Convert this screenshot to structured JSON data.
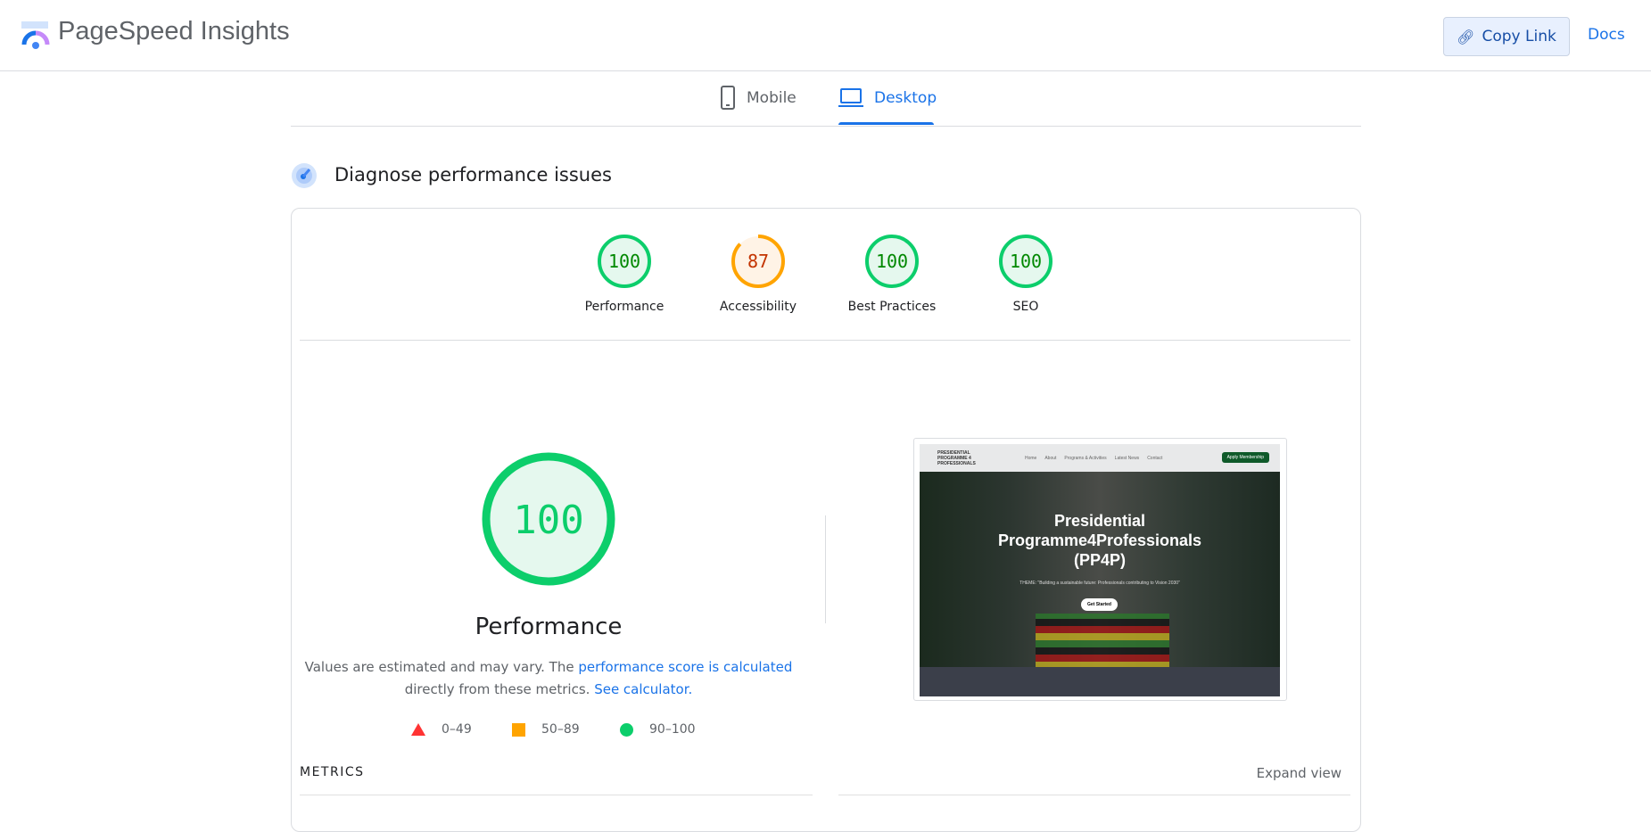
{
  "header": {
    "title": "PageSpeed Insights",
    "copy_link": "Copy Link",
    "docs": "Docs"
  },
  "tabs": [
    {
      "label": "Mobile",
      "active": false
    },
    {
      "label": "Desktop",
      "active": true
    }
  ],
  "section": {
    "title": "Diagnose performance issues"
  },
  "scores": [
    {
      "label": "Performance",
      "value": "100",
      "status": "pass"
    },
    {
      "label": "Accessibility",
      "value": "87",
      "status": "average"
    },
    {
      "label": "Best Practices",
      "value": "100",
      "status": "pass"
    },
    {
      "label": "SEO",
      "value": "100",
      "status": "pass"
    }
  ],
  "performance": {
    "score": "100",
    "title": "Performance",
    "desc_1": "Values are estimated and may vary. The ",
    "link_1": "performance score is calculated",
    "desc_2": " directly from these metrics. ",
    "link_2": "See calculator."
  },
  "legend": [
    {
      "range": "0–49",
      "shape": "triangle",
      "color": "#ff3333"
    },
    {
      "range": "50–89",
      "shape": "square",
      "color": "#ffa400"
    },
    {
      "range": "90–100",
      "shape": "circle",
      "color": "#0cce6b"
    }
  ],
  "metrics": {
    "label": "METRICS",
    "expand": "Expand view"
  },
  "screenshot": {
    "nav": [
      "Home",
      "About",
      "Programs & Activities",
      "Latest News",
      "Contact"
    ],
    "apply": "Apply Membership",
    "logo_text": "PRESIDENTIAL PROGRAMME 4 PROFESSIONALS",
    "heading_1": "Presidential",
    "heading_2": "Programme4Professionals",
    "heading_3": "(PP4P)",
    "theme": "THEME: \"Building a sustainable future: Professionals contributing to Vision 2030\"",
    "button": "Get Started"
  },
  "colors": {
    "pass": "#0cce6b",
    "pass_text": "#008800",
    "average": "#ffa400",
    "average_text": "#c33300",
    "accent": "#1a73e8"
  }
}
